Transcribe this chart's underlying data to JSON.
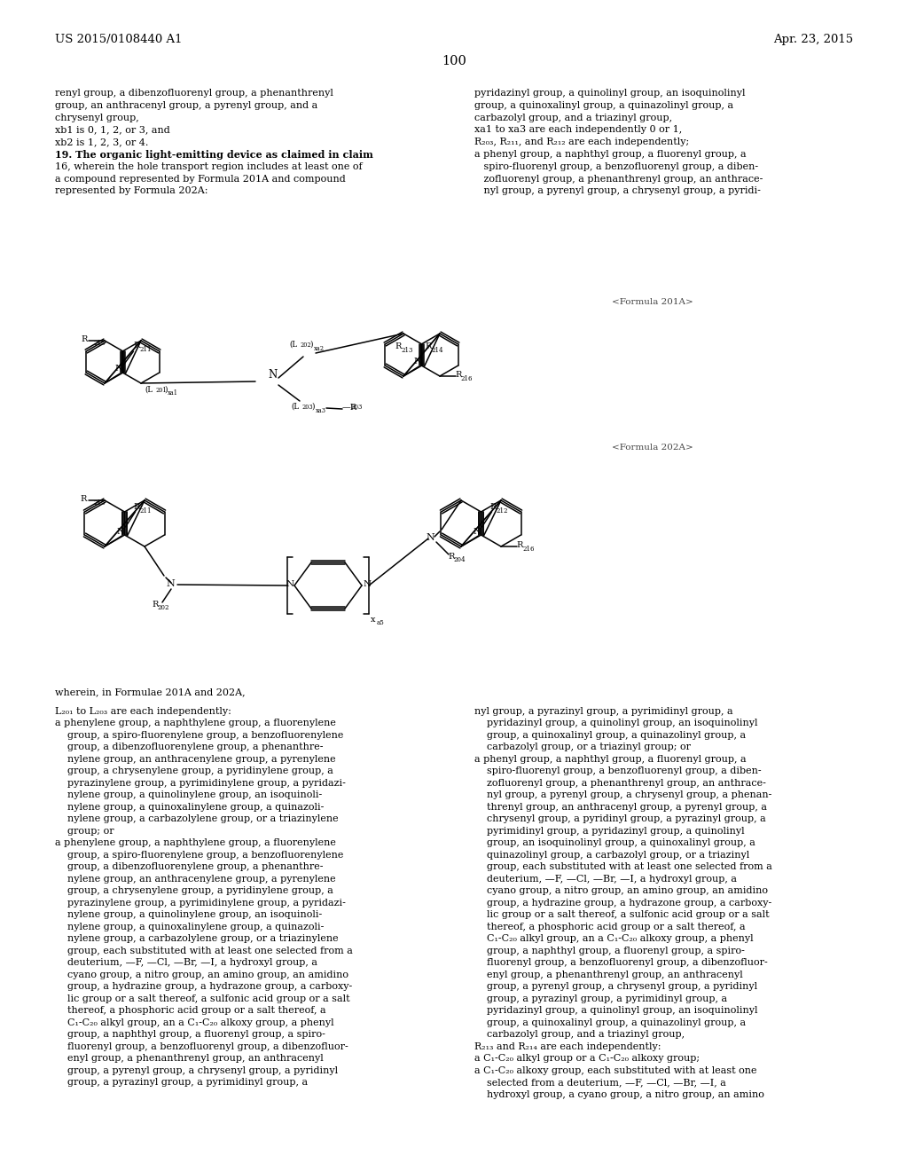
{
  "bg_color": "#ffffff",
  "header_left": "US 2015/0108440 A1",
  "header_right": "Apr. 23, 2015",
  "page_number": "100",
  "left_col_top": [
    [
      "normal",
      "renyl group, a dibenzofluorenyl group, a phenanthrenyl"
    ],
    [
      "normal",
      "group, an anthracenyl group, a pyrenyl group, and a"
    ],
    [
      "normal",
      "chrysenyl group,"
    ],
    [
      "normal",
      "xb1 is 0, 1, 2, or 3, and"
    ],
    [
      "normal",
      "xb2 is 1, 2, 3, or 4."
    ],
    [
      "bold",
      "19. The organic light-emitting device as claimed in claim"
    ],
    [
      "normal",
      "16, wherein the hole transport region includes at least one of"
    ],
    [
      "normal",
      "a compound represented by Formula 201A and compound"
    ],
    [
      "normal",
      "represented by Formula 202A:"
    ]
  ],
  "right_col_top": [
    [
      "normal",
      "pyridazinyl group, a quinolinyl group, an isoquinolinyl"
    ],
    [
      "normal",
      "group, a quinoxalinyl group, a quinazolinyl group, a"
    ],
    [
      "normal",
      "carbazolyl group, and a triazinyl group,"
    ],
    [
      "normal",
      "xa1 to xa3 are each independently 0 or 1,"
    ],
    [
      "normal",
      "R₂₀₃, R₂₁₁, and R₂₁₂ are each independently;"
    ],
    [
      "normal",
      "a phenyl group, a naphthyl group, a fluorenyl group, a"
    ],
    [
      "normal",
      "   spiro-fluorenyl group, a benzofluorenyl group, a diben-"
    ],
    [
      "normal",
      "   zofluorenyl group, a phenanthrenyl group, an anthrace-"
    ],
    [
      "normal",
      "   nyl group, a pyrenyl group, a chrysenyl group, a pyridi-"
    ]
  ],
  "formula_201A_label": "<Formula 201A>",
  "formula_202A_label": "<Formula 202A>",
  "wherein_text": "wherein, in Formulae 201A and 202A,",
  "left_col_bottom": [
    [
      "normal",
      "L₂₀₁ to L₂₀₃ are each independently:"
    ],
    [
      "normal",
      "a phenylene group, a naphthylene group, a fluorenylene"
    ],
    [
      "indent",
      "group, a spiro-fluorenylene group, a benzofluorenylene"
    ],
    [
      "indent",
      "group, a dibenzofluorenylene group, a phenanthre-"
    ],
    [
      "indent",
      "nylene group, an anthracenylene group, a pyrenylene"
    ],
    [
      "indent",
      "group, a chrysenylene group, a pyridinylene group, a"
    ],
    [
      "indent",
      "pyrazinylene group, a pyrimidinylene group, a pyridazi-"
    ],
    [
      "indent",
      "nylene group, a quinolinylene group, an isoquinoli-"
    ],
    [
      "indent",
      "nylene group, a quinoxalinylene group, a quinazoli-"
    ],
    [
      "indent",
      "nylene group, a carbazolylene group, or a triazinylene"
    ],
    [
      "indent",
      "group; or"
    ],
    [
      "normal",
      "a phenylene group, a naphthylene group, a fluorenylene"
    ],
    [
      "indent",
      "group, a spiro-fluorenylene group, a benzofluorenylene"
    ],
    [
      "indent",
      "group, a dibenzofluorenylene group, a phenanthre-"
    ],
    [
      "indent",
      "nylene group, an anthracenylene group, a pyrenylene"
    ],
    [
      "indent",
      "group, a chrysenylene group, a pyridinylene group, a"
    ],
    [
      "indent",
      "pyrazinylene group, a pyrimidinylene group, a pyridazi-"
    ],
    [
      "indent",
      "nylene group, a quinolinylene group, an isoquinoli-"
    ],
    [
      "indent",
      "nylene group, a quinoxalinylene group, a quinazoli-"
    ],
    [
      "indent",
      "nylene group, a carbazolylene group, or a triazinylene"
    ],
    [
      "indent",
      "group, each substituted with at least one selected from a"
    ],
    [
      "indent",
      "deuterium, —F, —Cl, —Br, —I, a hydroxyl group, a"
    ],
    [
      "indent",
      "cyano group, a nitro group, an amino group, an amidino"
    ],
    [
      "indent",
      "group, a hydrazine group, a hydrazone group, a carboxy-"
    ],
    [
      "indent",
      "lic group or a salt thereof, a sulfonic acid group or a salt"
    ],
    [
      "indent",
      "thereof, a phosphoric acid group or a salt thereof, a"
    ],
    [
      "indent",
      "C₁-C₂₀ alkyl group, an a C₁-C₂₀ alkoxy group, a phenyl"
    ],
    [
      "indent",
      "group, a naphthyl group, a fluorenyl group, a spiro-"
    ],
    [
      "indent",
      "fluorenyl group, a benzofluorenyl group, a dibenzofluor-"
    ],
    [
      "indent",
      "enyl group, a phenanthrenyl group, an anthracenyl"
    ],
    [
      "indent",
      "group, a pyrenyl group, a chrysenyl group, a pyridinyl"
    ],
    [
      "indent",
      "group, a pyrazinyl group, a pyrimidinyl group, a"
    ]
  ],
  "right_col_bottom": [
    [
      "normal",
      "nyl group, a pyrazinyl group, a pyrimidinyl group, a"
    ],
    [
      "indent",
      "pyridazinyl group, a quinolinyl group, an isoquinolinyl"
    ],
    [
      "indent",
      "group, a quinoxalinyl group, a quinazolinyl group, a"
    ],
    [
      "indent",
      "carbazolyl group, or a triazinyl group; or"
    ],
    [
      "normal",
      "a phenyl group, a naphthyl group, a fluorenyl group, a"
    ],
    [
      "indent",
      "spiro-fluorenyl group, a benzofluorenyl group, a diben-"
    ],
    [
      "indent",
      "zofluorenyl group, a phenanthrenyl group, an anthrace-"
    ],
    [
      "indent",
      "nyl group, a pyrenyl group, a chrysenyl group, a phenan-"
    ],
    [
      "indent",
      "threnyl group, an anthracenyl group, a pyrenyl group, a"
    ],
    [
      "indent",
      "chrysenyl group, a pyridinyl group, a pyrazinyl group, a"
    ],
    [
      "indent",
      "pyrimidinyl group, a pyridazinyl group, a quinolinyl"
    ],
    [
      "indent",
      "group, an isoquinolinyl group, a quinoxalinyl group, a"
    ],
    [
      "indent",
      "quinazolinyl group, a carbazolyl group, or a triazinyl"
    ],
    [
      "indent",
      "group, each substituted with at least one selected from a"
    ],
    [
      "indent",
      "deuterium, —F, —Cl, —Br, —I, a hydroxyl group, a"
    ],
    [
      "indent",
      "cyano group, a nitro group, an amino group, an amidino"
    ],
    [
      "indent",
      "group, a hydrazine group, a hydrazone group, a carboxy-"
    ],
    [
      "indent",
      "lic group or a salt thereof, a sulfonic acid group or a salt"
    ],
    [
      "indent",
      "thereof, a phosphoric acid group or a salt thereof, a"
    ],
    [
      "indent",
      "C₁-C₂₀ alkyl group, an a C₁-C₂₀ alkoxy group, a phenyl"
    ],
    [
      "indent",
      "group, a naphthyl group, a fluorenyl group, a spiro-"
    ],
    [
      "indent",
      "fluorenyl group, a benzofluorenyl group, a dibenzofluor-"
    ],
    [
      "indent",
      "enyl group, a phenanthrenyl group, an anthracenyl"
    ],
    [
      "indent",
      "group, a pyrenyl group, a chrysenyl group, a pyridinyl"
    ],
    [
      "indent",
      "group, a pyrazinyl group, a pyrimidinyl group, a"
    ],
    [
      "indent",
      "pyridazinyl group, a quinolinyl group, an isoquinolinyl"
    ],
    [
      "indent",
      "group, a quinoxalinyl group, a quinazolinyl group, a"
    ],
    [
      "indent",
      "carbazolyl group, and a triazinyl group,"
    ],
    [
      "normal",
      "R₂₁₃ and R₂₁₄ are each independently:"
    ],
    [
      "normal",
      "a C₁-C₂₀ alkyl group or a C₁-C₂₀ alkoxy group;"
    ],
    [
      "normal",
      "a C₁-C₂₀ alkoxy group, each substituted with at least one"
    ],
    [
      "indent",
      "selected from a deuterium, —F, —Cl, —Br, —I, a"
    ],
    [
      "indent",
      "hydroxyl group, a cyano group, a nitro group, an amino"
    ]
  ]
}
